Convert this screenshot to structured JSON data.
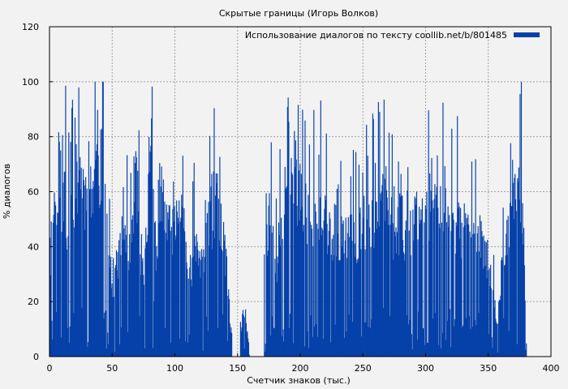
{
  "chart_data": {
    "type": "bar",
    "title": "Скрытые границы (Игорь Волков)",
    "xlabel": "Счетчик знаков (тыс.)",
    "ylabel": "% диалогов",
    "xlim": [
      0,
      400
    ],
    "ylim": [
      0,
      120
    ],
    "xticks": [
      0,
      50,
      100,
      150,
      200,
      250,
      300,
      350,
      400
    ],
    "yticks": [
      0,
      20,
      40,
      60,
      80,
      100,
      120
    ],
    "grid": true,
    "legend_position": "top-right",
    "bar_width": 0.5,
    "series": [
      {
        "name": "Использование диалогов по тексту coollib.net/b/801485",
        "color": "#0641a9",
        "segments": [
          {
            "x0": 0,
            "x1": 145,
            "seed": 11,
            "envelope": [
              [
                0,
                32
              ],
              [
                2,
                55
              ],
              [
                5,
                60
              ],
              [
                8,
                75
              ],
              [
                10,
                48
              ],
              [
                12,
                72
              ],
              [
                14,
                40
              ],
              [
                17,
                60
              ],
              [
                20,
                62
              ],
              [
                22,
                68
              ],
              [
                25,
                72
              ],
              [
                28,
                58
              ],
              [
                30,
                70
              ],
              [
                33,
                62
              ],
              [
                35,
                66
              ],
              [
                38,
                72
              ],
              [
                40,
                68
              ],
              [
                42,
                75
              ],
              [
                45,
                55
              ],
              [
                48,
                40
              ],
              [
                50,
                20
              ],
              [
                52,
                32
              ],
              [
                55,
                36
              ],
              [
                58,
                45
              ],
              [
                60,
                44
              ],
              [
                63,
                40
              ],
              [
                66,
                52
              ],
              [
                68,
                70
              ],
              [
                70,
                60
              ],
              [
                72,
                40
              ],
              [
                75,
                32
              ],
              [
                78,
                50
              ],
              [
                80,
                66
              ],
              [
                83,
                58
              ],
              [
                85,
                35
              ],
              [
                88,
                52
              ],
              [
                90,
                60
              ],
              [
                92,
                45
              ],
              [
                95,
                50
              ],
              [
                98,
                48
              ],
              [
                100,
                46
              ],
              [
                103,
                58
              ],
              [
                105,
                70
              ],
              [
                107,
                52
              ],
              [
                110,
                38
              ],
              [
                113,
                30
              ],
              [
                115,
                45
              ],
              [
                118,
                40
              ],
              [
                120,
                30
              ],
              [
                123,
                40
              ],
              [
                125,
                42
              ],
              [
                128,
                55
              ],
              [
                130,
                48
              ],
              [
                133,
                60
              ],
              [
                135,
                44
              ],
              [
                137,
                50
              ],
              [
                140,
                38
              ],
              [
                142,
                25
              ],
              [
                144,
                10
              ]
            ]
          },
          {
            "x0": 152,
            "x1": 159,
            "seed": 23,
            "envelope": [
              [
                152,
                9
              ],
              [
                156,
                11
              ],
              [
                159,
                5
              ]
            ]
          },
          {
            "x0": 171,
            "x1": 380,
            "seed": 37,
            "envelope": [
              [
                171,
                24
              ],
              [
                173,
                45
              ],
              [
                175,
                52
              ],
              [
                178,
                40
              ],
              [
                180,
                30
              ],
              [
                182,
                42
              ],
              [
                184,
                44
              ],
              [
                187,
                50
              ],
              [
                190,
                55
              ],
              [
                192,
                62
              ],
              [
                195,
                72
              ],
              [
                198,
                60
              ],
              [
                200,
                58
              ],
              [
                203,
                52
              ],
              [
                206,
                55
              ],
              [
                208,
                45
              ],
              [
                210,
                52
              ],
              [
                213,
                48
              ],
              [
                216,
                54
              ],
              [
                219,
                58
              ],
              [
                222,
                46
              ],
              [
                225,
                40
              ],
              [
                228,
                38
              ],
              [
                230,
                42
              ],
              [
                233,
                48
              ],
              [
                235,
                50
              ],
              [
                238,
                46
              ],
              [
                240,
                55
              ],
              [
                243,
                46
              ],
              [
                246,
                42
              ],
              [
                249,
                50
              ],
              [
                252,
                48
              ],
              [
                255,
                50
              ],
              [
                258,
                53
              ],
              [
                260,
                50
              ],
              [
                263,
                55
              ],
              [
                266,
                58
              ],
              [
                269,
                60
              ],
              [
                272,
                50
              ],
              [
                275,
                44
              ],
              [
                278,
                48
              ],
              [
                280,
                52
              ],
              [
                283,
                46
              ],
              [
                286,
                50
              ],
              [
                289,
                46
              ],
              [
                292,
                52
              ],
              [
                295,
                58
              ],
              [
                298,
                60
              ],
              [
                300,
                56
              ],
              [
                303,
                52
              ],
              [
                305,
                48
              ],
              [
                308,
                55
              ],
              [
                310,
                50
              ],
              [
                312,
                57
              ],
              [
                315,
                60
              ],
              [
                318,
                52
              ],
              [
                320,
                50
              ],
              [
                323,
                44
              ],
              [
                325,
                50
              ],
              [
                328,
                45
              ],
              [
                330,
                46
              ],
              [
                333,
                44
              ],
              [
                336,
                50
              ],
              [
                338,
                40
              ],
              [
                340,
                44
              ],
              [
                342,
                48
              ],
              [
                345,
                40
              ],
              [
                348,
                36
              ],
              [
                350,
                34
              ],
              [
                353,
                30
              ],
              [
                355,
                20
              ],
              [
                357,
                8
              ],
              [
                360,
                30
              ],
              [
                362,
                45
              ],
              [
                364,
                40
              ],
              [
                366,
                52
              ],
              [
                368,
                56
              ],
              [
                370,
                55
              ],
              [
                372,
                62
              ],
              [
                375,
                60
              ],
              [
                377,
                58
              ],
              [
                380,
                5
              ]
            ]
          }
        ]
      }
    ]
  }
}
